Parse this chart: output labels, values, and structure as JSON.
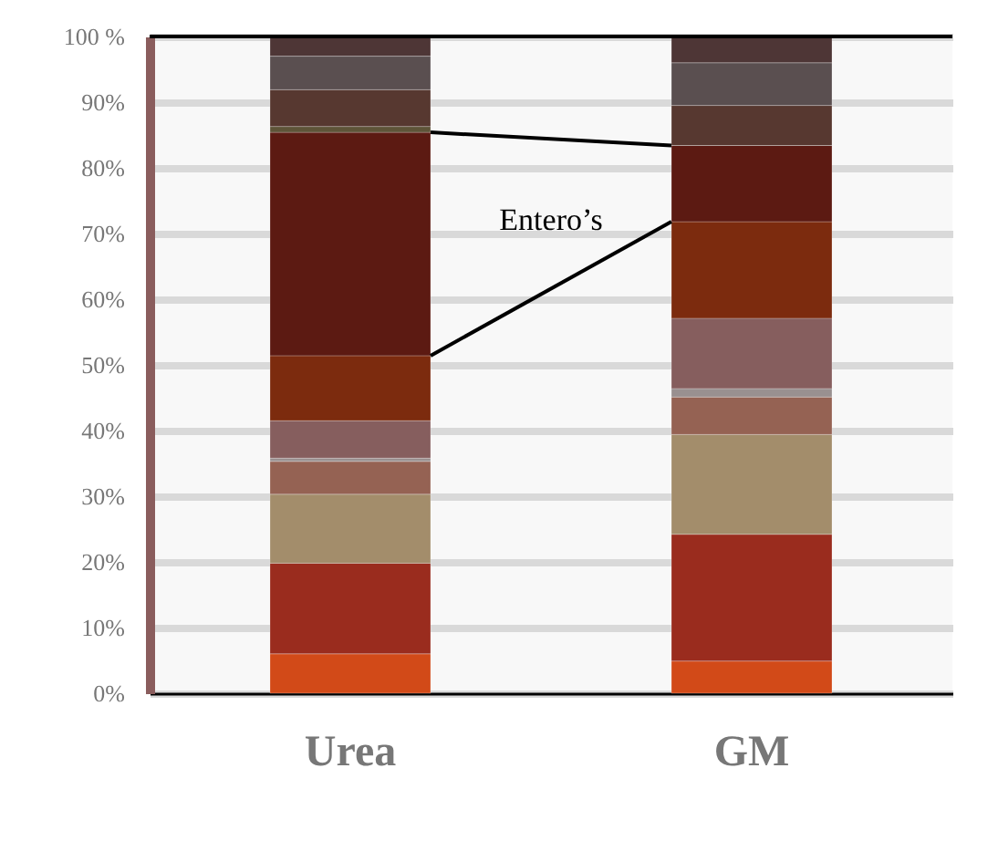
{
  "chart_data": {
    "type": "bar",
    "stacked": true,
    "categories": [
      "Urea",
      "GM"
    ],
    "series": [
      {
        "color": "#d24a18",
        "values": [
          6.0,
          4.9
        ]
      },
      {
        "color": "#9a2c1e",
        "values": [
          13.8,
          19.3
        ]
      },
      {
        "color": "#a38d6b",
        "values": [
          10.5,
          15.2
        ]
      },
      {
        "color": "#956253",
        "values": [
          5.0,
          5.7
        ]
      },
      {
        "color": "#999090",
        "values": [
          0.5,
          1.3
        ]
      },
      {
        "color": "#865e5e",
        "values": [
          5.7,
          10.7
        ]
      },
      {
        "color": "#7c2b0e",
        "values": [
          9.9,
          14.7
        ]
      },
      {
        "color": "#5c1a12",
        "values": [
          34.0,
          11.6
        ]
      },
      {
        "color": "#5e5438",
        "values": [
          0.9,
          0
        ]
      },
      {
        "color": "#573830",
        "values": [
          5.6,
          6.1
        ]
      },
      {
        "color": "#5a4f50",
        "values": [
          5.1,
          6.5
        ]
      },
      {
        "color": "#4e3636",
        "values": [
          3.0,
          4.0
        ]
      }
    ],
    "ylim": [
      0,
      100
    ],
    "yticks": [
      {
        "value": 0,
        "label": "0%"
      },
      {
        "value": 10,
        "label": "10%"
      },
      {
        "value": 20,
        "label": "20%"
      },
      {
        "value": 30,
        "label": "30%"
      },
      {
        "value": 40,
        "label": "40%"
      },
      {
        "value": 50,
        "label": "50%"
      },
      {
        "value": 60,
        "label": "60%"
      },
      {
        "value": 70,
        "label": "70%"
      },
      {
        "value": 80,
        "label": "80%"
      },
      {
        "value": 90,
        "label": "90%"
      },
      {
        "value": 100,
        "label": "100 %"
      }
    ],
    "grid": "y",
    "annotations": [
      "Entero’s"
    ]
  }
}
